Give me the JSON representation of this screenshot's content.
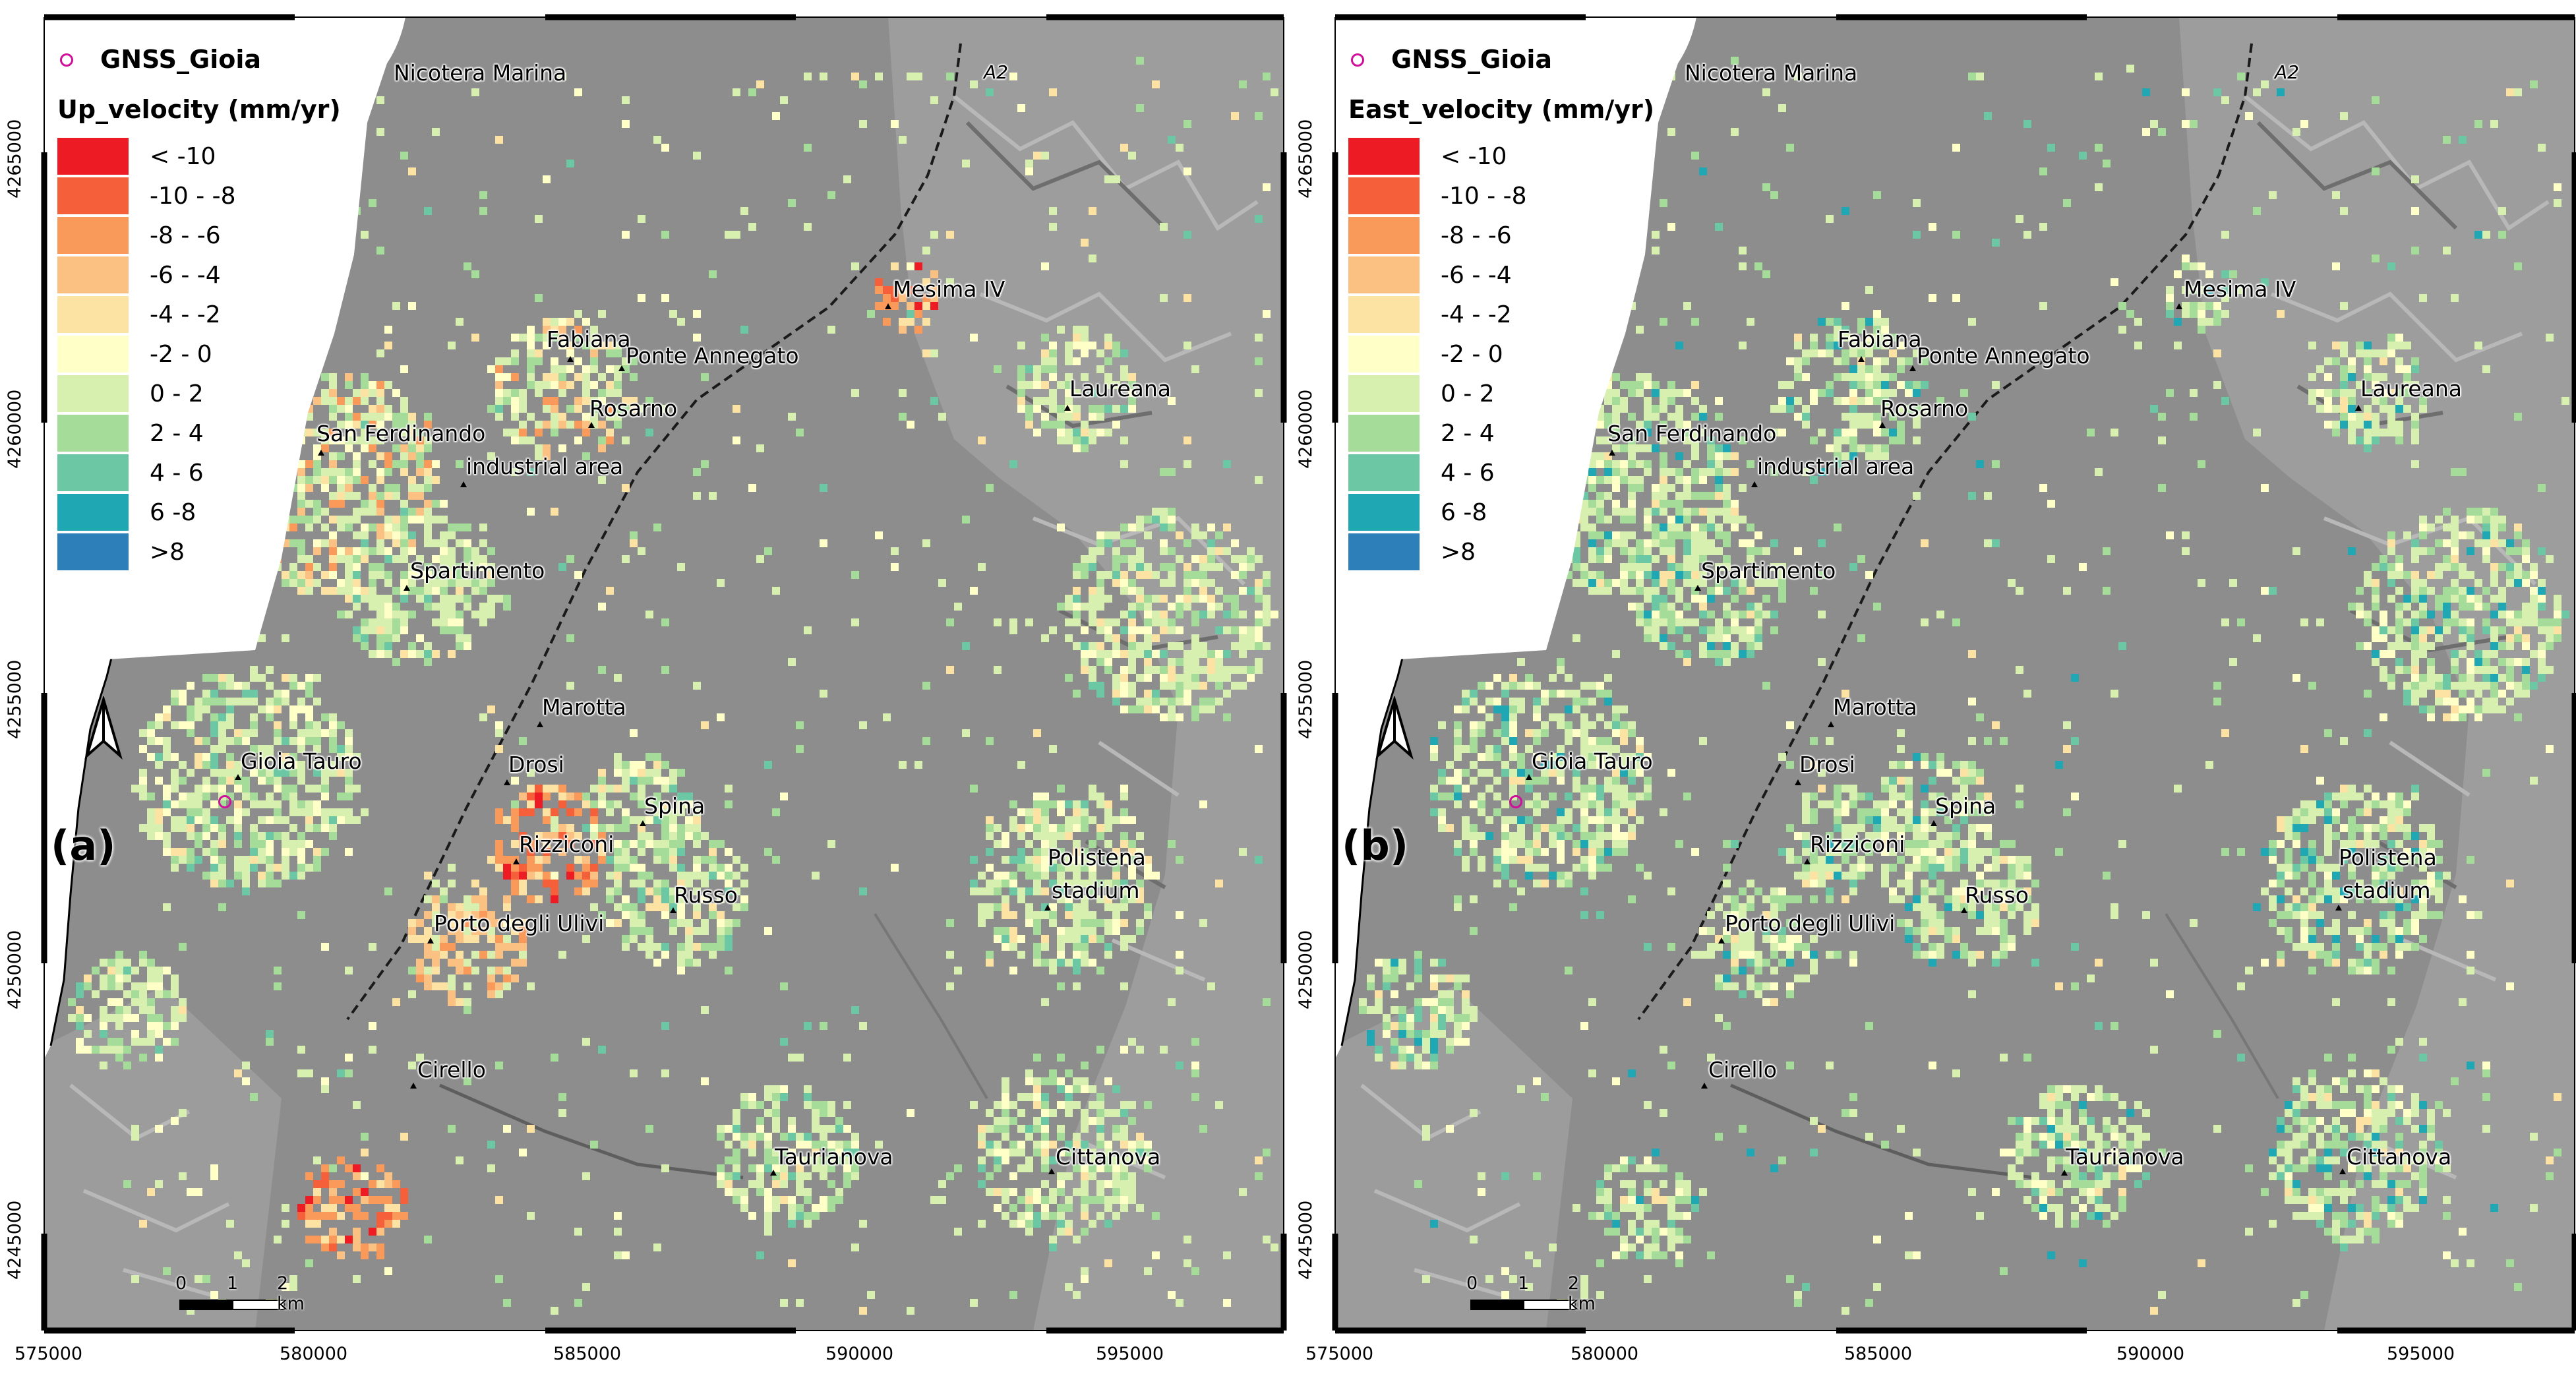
{
  "colors": {
    "class_colors": [
      "#ed1c24",
      "#f5603a",
      "#f99a5a",
      "#fbc183",
      "#fde3a3",
      "#ffffc8",
      "#d7efaf",
      "#a6dc9a",
      "#6cc7a4",
      "#1fa8b4",
      "#2c7fb8"
    ],
    "gnss_marker": "#d0109a"
  },
  "panels": [
    {
      "panel_label": "(a)",
      "gnss_label": "GNSS_Gioia",
      "legend_title": "Up_velocity (mm/yr)",
      "legend_items": [
        "< -10",
        "-10 - -8",
        "-8 -  -6",
        "-6 -  -4",
        "-4 -  -2",
        "-2 - 0",
        "0 - 2",
        "2 - 4",
        "4 - 6",
        "6 -8",
        ">8"
      ]
    },
    {
      "panel_label": "(b)",
      "gnss_label": "GNSS_Gioia",
      "legend_title": "East_velocity (mm/yr)",
      "legend_items": [
        "< -10",
        "-10 - -8",
        "-8 -  -6",
        "-6 -  -4",
        "-4 -  -2",
        "-2 - 0",
        "0 - 2",
        "2 - 4",
        "4 - 6",
        "6 -8",
        ">8"
      ]
    }
  ],
  "places": {
    "nicotera": "Nicotera Marina",
    "a2": "A2",
    "mesima": "Mesima IV",
    "fabiana": "Fabiana",
    "ponte": "Ponte Annegato",
    "rosarno": "Rosarno",
    "laureana": "Laureana",
    "sanferdinando": "San Ferdinando",
    "industrial": "industrial area",
    "spartimento": "Spartimento",
    "marotta": "Marotta",
    "gioia": "Gioia Tauro",
    "drosi": "Drosi",
    "spina": "Spina",
    "rizziconi": "Rizziconi",
    "russo": "Russo",
    "polistena_1": "Polistena",
    "polistena_2": "stadium",
    "porto": "Porto degli Ulivi",
    "cirello": "Cirello",
    "taurianova": "Taurianova",
    "cittanova": "Cittanova"
  },
  "x_ticks": [
    "575000",
    "580000",
    "585000",
    "590000",
    "595000"
  ],
  "y_ticks": [
    "4265000",
    "4260000",
    "4255000",
    "4250000",
    "4245000"
  ],
  "scale_bar": {
    "labels": [
      "0",
      "1",
      "2 km"
    ]
  },
  "north_arrow_icon": "north-arrow-icon"
}
